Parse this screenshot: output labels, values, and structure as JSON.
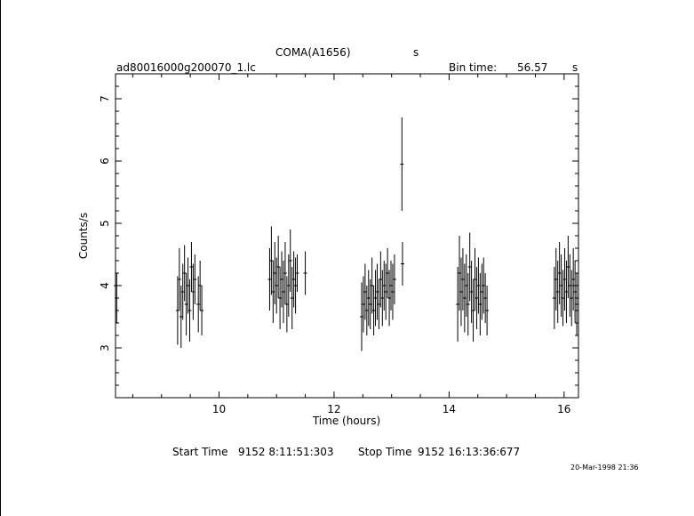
{
  "header": {
    "title": "COMA(A1656)",
    "title_suffix": "s",
    "filename": "ad80016000g200070_1.lc",
    "bin_label": "Bin time:",
    "bin_value": "56.57",
    "bin_unit": "s"
  },
  "footer": {
    "start_label": "Start Time",
    "start_value": "9152  8:11:51:303",
    "stop_label": "Stop Time",
    "stop_value": "9152 16:13:36:677",
    "date_stamp": "20-Mar-1998 21:36"
  },
  "chart_data": {
    "type": "scatter",
    "xlabel": "Time (hours)",
    "ylabel": "Counts/s",
    "xlim": [
      8.2,
      16.25
    ],
    "ylim": [
      2.2,
      7.4
    ],
    "x_ticks": [
      10,
      12,
      14,
      16
    ],
    "y_ticks": [
      3,
      4,
      5,
      6,
      7
    ],
    "grid": false,
    "series": [
      {
        "x": [
          8.2,
          8.22,
          9.28,
          9.31,
          9.34,
          9.37,
          9.4,
          9.43,
          9.46,
          9.49,
          9.52,
          9.55,
          9.58,
          9.64,
          9.67,
          9.7,
          10.88,
          10.91,
          10.94,
          10.97,
          11.0,
          11.03,
          11.06,
          11.09,
          11.12,
          11.15,
          11.18,
          11.21,
          11.24,
          11.27,
          11.3,
          11.33,
          11.36,
          11.5,
          12.48,
          12.51,
          12.54,
          12.57,
          12.6,
          12.63,
          12.66,
          12.69,
          12.72,
          12.75,
          12.78,
          12.81,
          12.84,
          12.87,
          12.9,
          12.93,
          12.96,
          12.99,
          13.02,
          13.05,
          13.18,
          13.19,
          14.15,
          14.18,
          14.21,
          14.24,
          14.27,
          14.3,
          14.33,
          14.36,
          14.39,
          14.42,
          14.45,
          14.48,
          14.51,
          14.54,
          14.57,
          14.6,
          14.63,
          14.66,
          15.83,
          15.86,
          15.89,
          15.92,
          15.95,
          15.98,
          16.01,
          16.04,
          16.07,
          16.1,
          16.13,
          16.16,
          16.19,
          16.22
        ],
        "y": [
          4.0,
          3.8,
          3.6,
          4.1,
          3.5,
          3.9,
          4.2,
          3.7,
          4.0,
          3.6,
          4.3,
          3.9,
          4.1,
          3.7,
          4.0,
          3.6,
          4.1,
          4.4,
          3.9,
          4.2,
          4.0,
          4.3,
          3.8,
          4.1,
          3.9,
          4.2,
          3.7,
          4.0,
          4.4,
          3.8,
          4.1,
          4.0,
          4.2,
          4.2,
          3.5,
          3.7,
          3.9,
          3.6,
          3.8,
          3.7,
          4.0,
          3.6,
          3.8,
          3.9,
          3.7,
          4.1,
          3.8,
          4.0,
          3.9,
          4.2,
          3.8,
          4.0,
          3.9,
          4.1,
          5.95,
          4.35,
          3.7,
          4.2,
          3.9,
          4.1,
          3.8,
          4.0,
          3.7,
          4.3,
          3.9,
          3.6,
          4.1,
          3.8,
          4.0,
          3.7,
          3.9,
          4.0,
          3.8,
          3.6,
          3.8,
          4.1,
          3.9,
          4.2,
          4.0,
          3.8,
          4.1,
          3.9,
          4.3,
          4.0,
          3.8,
          4.1,
          3.9,
          3.7
        ],
        "err": [
          0.35,
          0.4,
          0.55,
          0.5,
          0.5,
          0.45,
          0.45,
          0.5,
          0.45,
          0.5,
          0.4,
          0.45,
          0.4,
          0.45,
          0.4,
          0.4,
          0.5,
          0.55,
          0.5,
          0.5,
          0.45,
          0.5,
          0.5,
          0.45,
          0.5,
          0.5,
          0.45,
          0.5,
          0.5,
          0.5,
          0.45,
          0.45,
          0.3,
          0.35,
          0.55,
          0.45,
          0.45,
          0.4,
          0.45,
          0.4,
          0.45,
          0.4,
          0.45,
          0.45,
          0.4,
          0.45,
          0.45,
          0.4,
          0.45,
          0.4,
          0.45,
          0.4,
          0.45,
          0.4,
          0.75,
          0.35,
          0.6,
          0.6,
          0.55,
          0.5,
          0.55,
          0.5,
          0.5,
          0.55,
          0.5,
          0.5,
          0.5,
          0.5,
          0.45,
          0.5,
          0.45,
          0.45,
          0.4,
          0.4,
          0.5,
          0.5,
          0.5,
          0.5,
          0.5,
          0.45,
          0.5,
          0.5,
          0.5,
          0.5,
          0.45,
          0.5,
          0.5,
          0.5
        ]
      }
    ]
  }
}
